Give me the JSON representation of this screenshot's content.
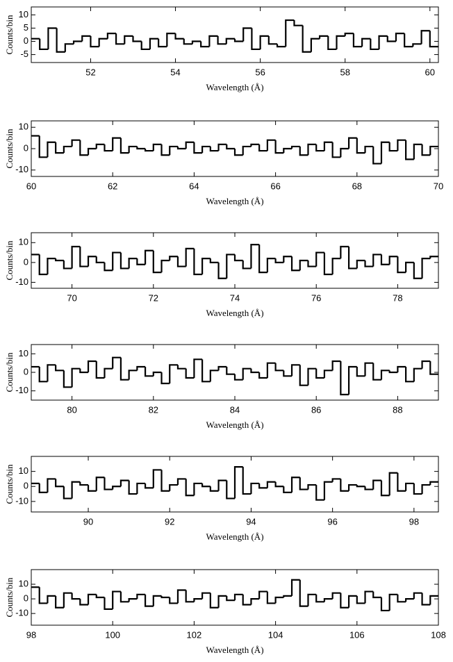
{
  "chart_data": [
    {
      "type": "histogram",
      "xlabel": "Wavelength (Å)",
      "ylabel": "Counts/bin",
      "color": "#000000",
      "xlim": [
        50.6,
        60.2
      ],
      "xticks": [
        52,
        54,
        56,
        58,
        60
      ],
      "ylim": [
        -8,
        13
      ],
      "yticks": [
        -5,
        0,
        5,
        10
      ],
      "bins": [
        50.6,
        50.8,
        51.0,
        51.2,
        51.4,
        51.6,
        51.8,
        52.0,
        52.2,
        52.4,
        52.6,
        52.8,
        53.0,
        53.2,
        53.4,
        53.6,
        53.8,
        54.0,
        54.2,
        54.4,
        54.6,
        54.8,
        55.0,
        55.2,
        55.4,
        55.6,
        55.8,
        56.0,
        56.2,
        56.4,
        56.6,
        56.8,
        57.0,
        57.2,
        57.4,
        57.6,
        57.8,
        58.0,
        58.2,
        58.4,
        58.6,
        58.8,
        59.0,
        59.2,
        59.4,
        59.6,
        59.8,
        60.0,
        60.2
      ],
      "values": [
        1,
        -3,
        5,
        -4,
        -1,
        0,
        2,
        -2,
        1,
        3,
        -1,
        2,
        0,
        -3,
        1,
        -2,
        3,
        1,
        -1,
        0,
        -2,
        2,
        -1,
        1,
        0,
        5,
        -3,
        2,
        -1,
        -2,
        8,
        6,
        -4,
        1,
        2,
        -3,
        2,
        3,
        -2,
        1,
        -3,
        2,
        0,
        3,
        -2,
        -1,
        4,
        -2
      ]
    },
    {
      "type": "histogram",
      "xlabel": "Wavelength (Å)",
      "ylabel": "Counts/bin",
      "color": "#000000",
      "xlim": [
        60,
        70
      ],
      "xticks": [
        60,
        62,
        64,
        66,
        68,
        70
      ],
      "ylim": [
        -13,
        13
      ],
      "yticks": [
        -10,
        0,
        10
      ],
      "bins": [
        60.0,
        60.2,
        60.4,
        60.6,
        60.8,
        61.0,
        61.2,
        61.4,
        61.6,
        61.8,
        62.0,
        62.2,
        62.4,
        62.6,
        62.8,
        63.0,
        63.2,
        63.4,
        63.6,
        63.8,
        64.0,
        64.2,
        64.4,
        64.6,
        64.8,
        65.0,
        65.2,
        65.4,
        65.6,
        65.8,
        66.0,
        66.2,
        66.4,
        66.6,
        66.8,
        67.0,
        67.2,
        67.4,
        67.6,
        67.8,
        68.0,
        68.2,
        68.4,
        68.6,
        68.8,
        69.0,
        69.2,
        69.4,
        69.6,
        69.8,
        70.0
      ],
      "values": [
        6,
        -4,
        3,
        -2,
        1,
        4,
        -3,
        0,
        2,
        -1,
        5,
        -2,
        1,
        0,
        -1,
        2,
        -3,
        1,
        0,
        3,
        -2,
        1,
        -1,
        2,
        0,
        -3,
        1,
        2,
        -1,
        4,
        -2,
        0,
        1,
        -3,
        2,
        -1,
        3,
        -4,
        0,
        5,
        -2,
        1,
        -7,
        3,
        -1,
        4,
        -5,
        2,
        -3,
        1
      ]
    },
    {
      "type": "histogram",
      "xlabel": "Wavelength (Å)",
      "ylabel": "Counts/bin",
      "color": "#000000",
      "xlim": [
        69,
        79
      ],
      "xticks": [
        70,
        72,
        74,
        76,
        78
      ],
      "ylim": [
        -13,
        15
      ],
      "yticks": [
        -10,
        0,
        10
      ],
      "bins": [
        69.0,
        69.2,
        69.4,
        69.6,
        69.8,
        70.0,
        70.2,
        70.4,
        70.6,
        70.8,
        71.0,
        71.2,
        71.4,
        71.6,
        71.8,
        72.0,
        72.2,
        72.4,
        72.6,
        72.8,
        73.0,
        73.2,
        73.4,
        73.6,
        73.8,
        74.0,
        74.2,
        74.4,
        74.6,
        74.8,
        75.0,
        75.2,
        75.4,
        75.6,
        75.8,
        76.0,
        76.2,
        76.4,
        76.6,
        76.8,
        77.0,
        77.2,
        77.4,
        77.6,
        77.8,
        78.0,
        78.2,
        78.4,
        78.6,
        78.8,
        79.0
      ],
      "values": [
        4,
        -6,
        2,
        1,
        -3,
        8,
        -2,
        3,
        0,
        -4,
        5,
        -3,
        2,
        -1,
        6,
        -5,
        1,
        3,
        -2,
        7,
        -6,
        2,
        0,
        -8,
        4,
        1,
        -3,
        9,
        -5,
        2,
        0,
        3,
        -4,
        1,
        -2,
        5,
        -6,
        2,
        8,
        -3,
        1,
        -2,
        4,
        -1,
        3,
        -5,
        0,
        -8,
        2,
        3
      ]
    },
    {
      "type": "histogram",
      "xlabel": "Wavelength (Å)",
      "ylabel": "Counts/bin",
      "color": "#000000",
      "xlim": [
        79,
        89
      ],
      "xticks": [
        80,
        82,
        84,
        86,
        88
      ],
      "ylim": [
        -15,
        15
      ],
      "yticks": [
        -10,
        0,
        10
      ],
      "bins": [
        79.0,
        79.2,
        79.4,
        79.6,
        79.8,
        80.0,
        80.2,
        80.4,
        80.6,
        80.8,
        81.0,
        81.2,
        81.4,
        81.6,
        81.8,
        82.0,
        82.2,
        82.4,
        82.6,
        82.8,
        83.0,
        83.2,
        83.4,
        83.6,
        83.8,
        84.0,
        84.2,
        84.4,
        84.6,
        84.8,
        85.0,
        85.2,
        85.4,
        85.6,
        85.8,
        86.0,
        86.2,
        86.4,
        86.6,
        86.8,
        87.0,
        87.2,
        87.4,
        87.6,
        87.8,
        88.0,
        88.2,
        88.4,
        88.6,
        88.8,
        89.0
      ],
      "values": [
        3,
        -5,
        4,
        1,
        -8,
        2,
        0,
        6,
        -3,
        2,
        8,
        -4,
        1,
        3,
        -2,
        0,
        -6,
        4,
        2,
        -3,
        7,
        -5,
        1,
        3,
        -1,
        -4,
        2,
        0,
        -3,
        5,
        1,
        -2,
        4,
        -7,
        2,
        -3,
        1,
        6,
        -12,
        3,
        -2,
        5,
        -4,
        1,
        0,
        3,
        -5,
        2,
        6,
        -1
      ]
    },
    {
      "type": "histogram",
      "xlabel": "Wavelength (Å)",
      "ylabel": "Counts/bin",
      "color": "#000000",
      "xlim": [
        88.6,
        98.6
      ],
      "xticks": [
        90,
        92,
        94,
        96,
        98
      ],
      "ylim": [
        -17,
        20
      ],
      "yticks": [
        -10,
        0,
        10
      ],
      "bins": [
        88.6,
        88.8,
        89.0,
        89.2,
        89.4,
        89.6,
        89.8,
        90.0,
        90.2,
        90.4,
        90.6,
        90.8,
        91.0,
        91.2,
        91.4,
        91.6,
        91.8,
        92.0,
        92.2,
        92.4,
        92.6,
        92.8,
        93.0,
        93.2,
        93.4,
        93.6,
        93.8,
        94.0,
        94.2,
        94.4,
        94.6,
        94.8,
        95.0,
        95.2,
        95.4,
        95.6,
        95.8,
        96.0,
        96.2,
        96.4,
        96.6,
        96.8,
        97.0,
        97.2,
        97.4,
        97.6,
        97.8,
        98.0,
        98.2,
        98.4,
        98.6
      ],
      "values": [
        2,
        -4,
        5,
        0,
        -8,
        3,
        1,
        -3,
        6,
        -2,
        0,
        4,
        -5,
        2,
        -1,
        11,
        -3,
        1,
        5,
        -6,
        2,
        0,
        -3,
        4,
        -8,
        13,
        -5,
        2,
        -1,
        3,
        0,
        -4,
        6,
        -2,
        1,
        -9,
        3,
        5,
        -3,
        1,
        0,
        -2,
        4,
        -6,
        9,
        -3,
        2,
        -5,
        1,
        3
      ]
    },
    {
      "type": "histogram",
      "xlabel": "Wavelength (Å)",
      "ylabel": "Counts/bin",
      "color": "#000000",
      "xlim": [
        98,
        108
      ],
      "xticks": [
        98,
        100,
        102,
        104,
        106,
        108
      ],
      "ylim": [
        -18,
        20
      ],
      "yticks": [
        -10,
        0,
        10
      ],
      "bins": [
        98.0,
        98.2,
        98.4,
        98.6,
        98.8,
        99.0,
        99.2,
        99.4,
        99.6,
        99.8,
        100.0,
        100.2,
        100.4,
        100.6,
        100.8,
        101.0,
        101.2,
        101.4,
        101.6,
        101.8,
        102.0,
        102.2,
        102.4,
        102.6,
        102.8,
        103.0,
        103.2,
        103.4,
        103.6,
        103.8,
        104.0,
        104.2,
        104.4,
        104.6,
        104.8,
        105.0,
        105.2,
        105.4,
        105.6,
        105.8,
        106.0,
        106.2,
        106.4,
        106.6,
        106.8,
        107.0,
        107.2,
        107.4,
        107.6,
        107.8,
        108.0
      ],
      "values": [
        8,
        -3,
        2,
        -6,
        4,
        0,
        -4,
        3,
        1,
        -7,
        5,
        -2,
        0,
        3,
        -5,
        2,
        1,
        -3,
        6,
        -2,
        0,
        4,
        -6,
        2,
        -1,
        3,
        -4,
        0,
        5,
        -3,
        1,
        2,
        13,
        -5,
        3,
        -2,
        0,
        4,
        -6,
        2,
        -3,
        5,
        1,
        -8,
        3,
        -2,
        0,
        4,
        -4,
        2
      ]
    }
  ]
}
